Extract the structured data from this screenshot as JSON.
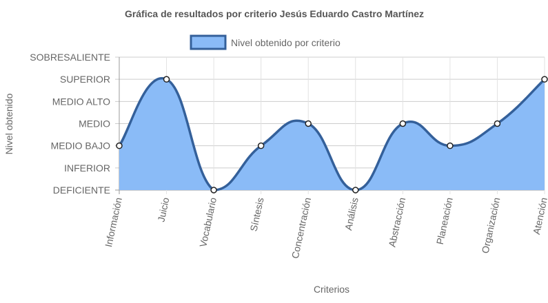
{
  "chart_data": {
    "type": "line",
    "title": "Gráfica de resultados por criterio Jesús Eduardo Castro Martínez",
    "xlabel": "Criterios",
    "ylabel": "Nivel obtenido",
    "categories": [
      "Información",
      "Juicio",
      "Vocabulario",
      "Síntesis",
      "Concentración",
      "Análisis",
      "Abstracción",
      "Planeación",
      "Organización",
      "Atención"
    ],
    "y_levels": [
      "DEFICIENTE",
      "INFERIOR",
      "MEDIO BAJO",
      "MEDIO",
      "MEDIO ALTO",
      "SUPERIOR",
      "SOBRESALIENTE"
    ],
    "ylim": [
      0,
      6
    ],
    "series": [
      {
        "name": "Nivel obtenido por criterio",
        "values": [
          2,
          5,
          0,
          2,
          3,
          0,
          3,
          2,
          3,
          5
        ],
        "value_labels": [
          "MEDIO BAJO",
          "SUPERIOR",
          "DEFICIENTE",
          "MEDIO BAJO",
          "MEDIO",
          "DEFICIENTE",
          "MEDIO",
          "MEDIO BAJO",
          "MEDIO",
          "SUPERIOR"
        ],
        "fill_color": "#8ABBF7",
        "line_color": "#34609A"
      }
    ],
    "legend_position": "top",
    "grid": true,
    "filled": true,
    "smooth": true
  }
}
